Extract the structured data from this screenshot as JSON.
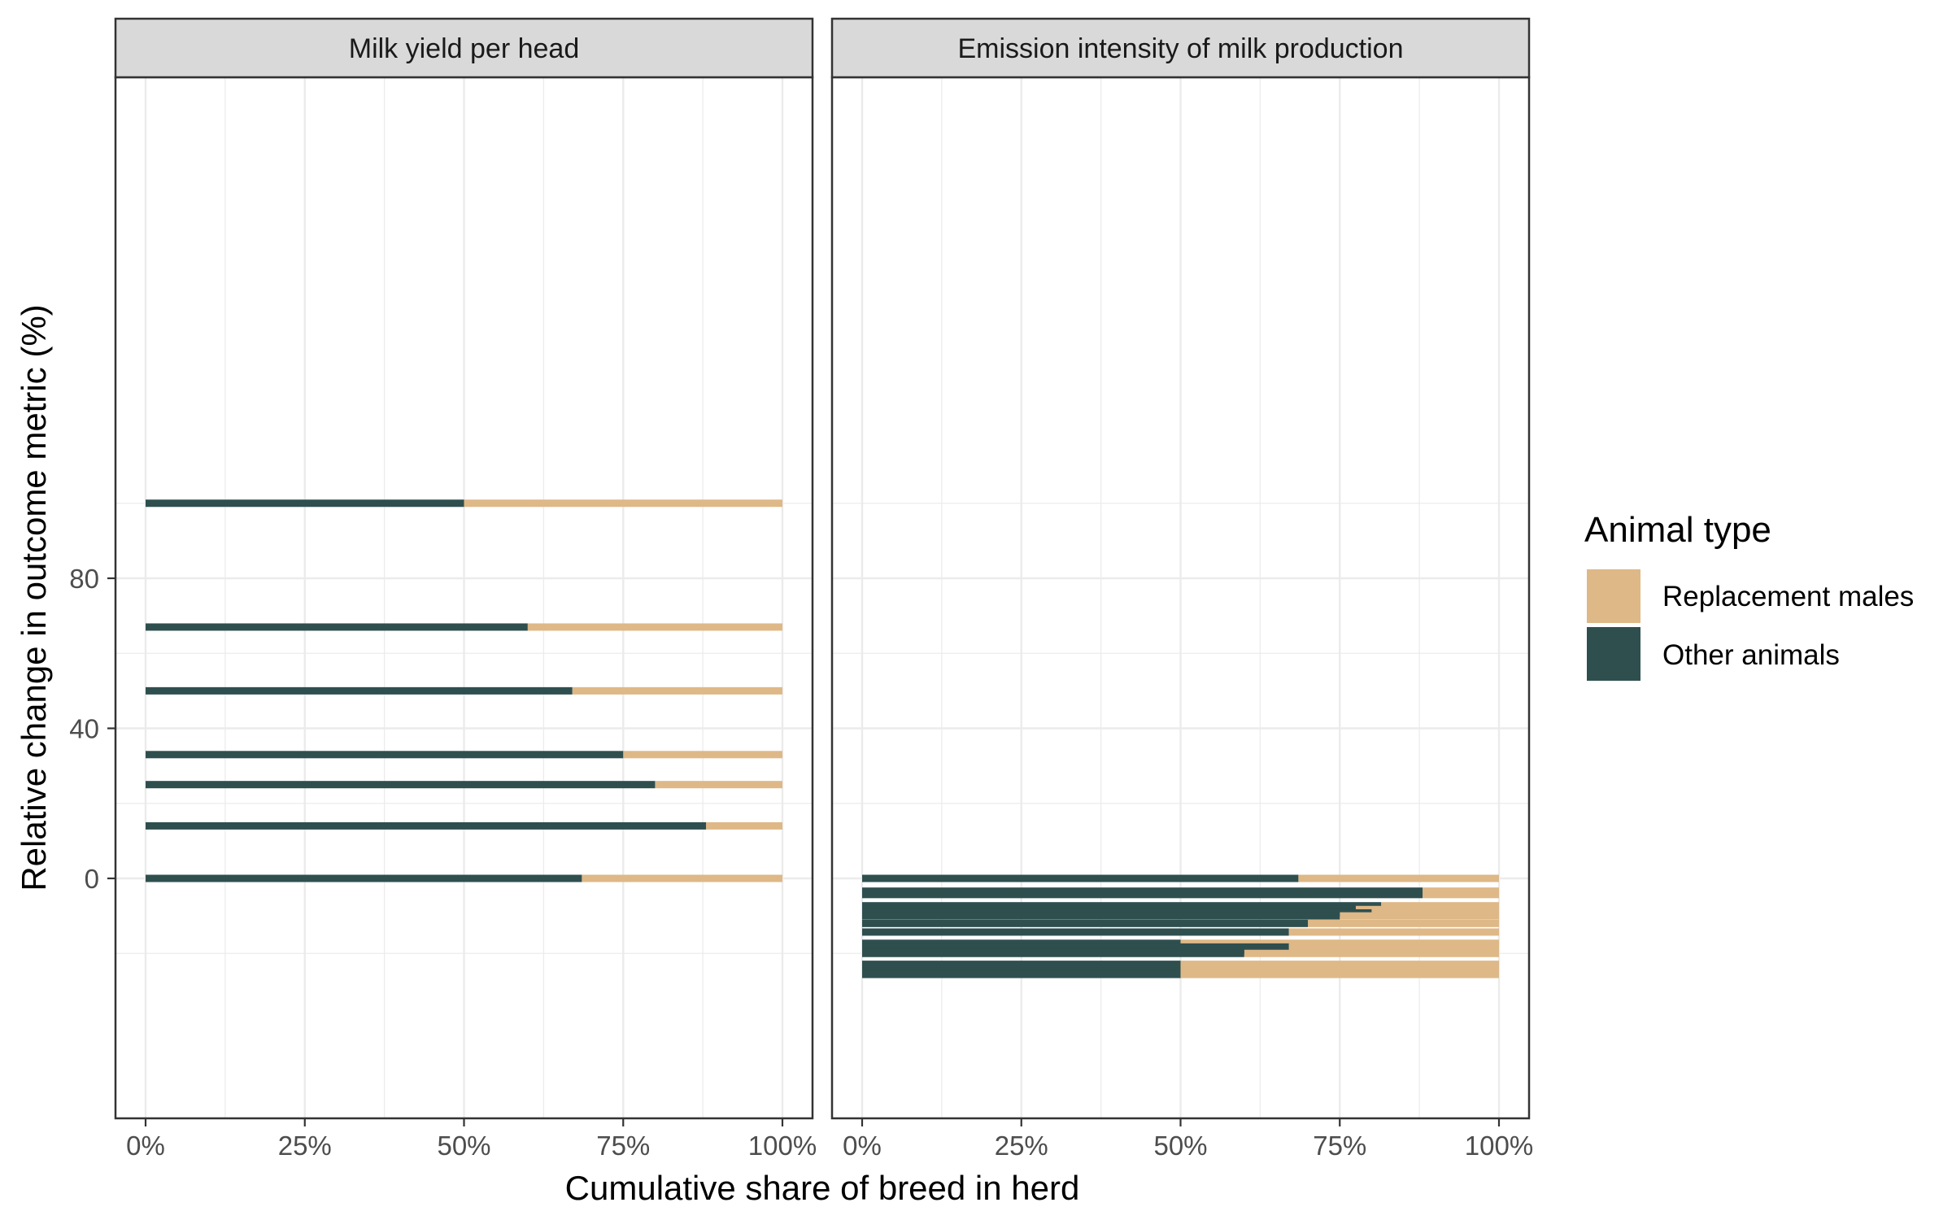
{
  "colors": {
    "replacement_males": "#deb887",
    "other_animals": "#2f4f4f",
    "strip_fill": "#d9d9d9",
    "grid": "#ebebeb",
    "panel_border": "#333333"
  },
  "chart_data": {
    "type": "bar",
    "orientation": "horizontal-stacked-segments",
    "xlabel": "Cumulative share of breed in herd",
    "ylabel": "Relative change in outcome metric (%)",
    "x_ticks": [
      "0%",
      "25%",
      "50%",
      "75%",
      "100%"
    ],
    "x_range": [
      0,
      1
    ],
    "y_ticks": [
      "0",
      "40",
      "80"
    ],
    "y_tick_values": [
      0,
      40,
      80
    ],
    "y_range": [
      -30,
      107
    ],
    "grid": true,
    "legend": {
      "title": "Animal type",
      "position": "right",
      "items": [
        {
          "label": "Replacement males",
          "key": "replacement_males"
        },
        {
          "label": "Other animals",
          "key": "other_animals"
        }
      ]
    },
    "panels": [
      {
        "title": "Milk yield per head",
        "bars": [
          {
            "y": 100,
            "other_share": 0.5
          },
          {
            "y": 67,
            "other_share": 0.6
          },
          {
            "y": 50,
            "other_share": 0.67
          },
          {
            "y": 33,
            "other_share": 0.75
          },
          {
            "y": 25,
            "other_share": 0.8
          },
          {
            "y": 14,
            "other_share": 0.88
          },
          {
            "y": 0,
            "other_share": 0.685
          }
        ]
      },
      {
        "title": "Emission intensity of milk production",
        "bars": [
          {
            "y": 0,
            "other_share": 0.685
          },
          {
            "y": -3.4,
            "other_share": 0.88
          },
          {
            "y": -4.3,
            "other_share": 0.88
          },
          {
            "y": -7.3,
            "other_share": 0.815
          },
          {
            "y": -8.3,
            "other_share": 0.775
          },
          {
            "y": -9.2,
            "other_share": 0.8
          },
          {
            "y": -10.0,
            "other_share": 0.75
          },
          {
            "y": -12.0,
            "other_share": 0.7
          },
          {
            "y": -14.3,
            "other_share": 0.67
          },
          {
            "y": -17.3,
            "other_share": 0.5
          },
          {
            "y": -18.3,
            "other_share": 0.67
          },
          {
            "y": -19.2,
            "other_share": 0.67
          },
          {
            "y": -20.0,
            "other_share": 0.6
          },
          {
            "y": -22.9,
            "other_share": 0.5
          },
          {
            "y": -23.8,
            "other_share": 0.5
          },
          {
            "y": -24.7,
            "other_share": 0.5
          },
          {
            "y": -25.6,
            "other_share": 0.5
          }
        ]
      }
    ]
  }
}
